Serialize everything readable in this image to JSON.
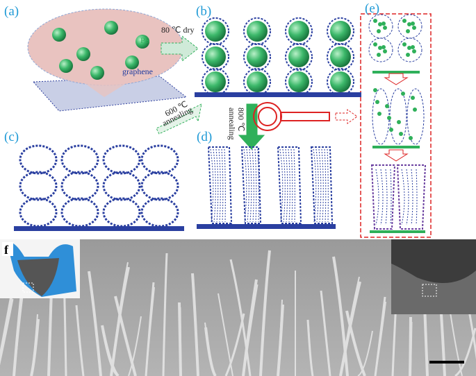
{
  "panels": {
    "a": "(a)",
    "b": "(b)",
    "c": "(c)",
    "d": "(d)",
    "e": "(e)",
    "f": "f"
  },
  "annotations": {
    "dry": "80 ℃ dry",
    "ps": "PS",
    "graphene": "graphene",
    "anneal600_temp": "600 ℃",
    "anneal600_word": "annealing",
    "anneal800_temp": "800 ℃",
    "anneal800_word": "annealing"
  }
}
